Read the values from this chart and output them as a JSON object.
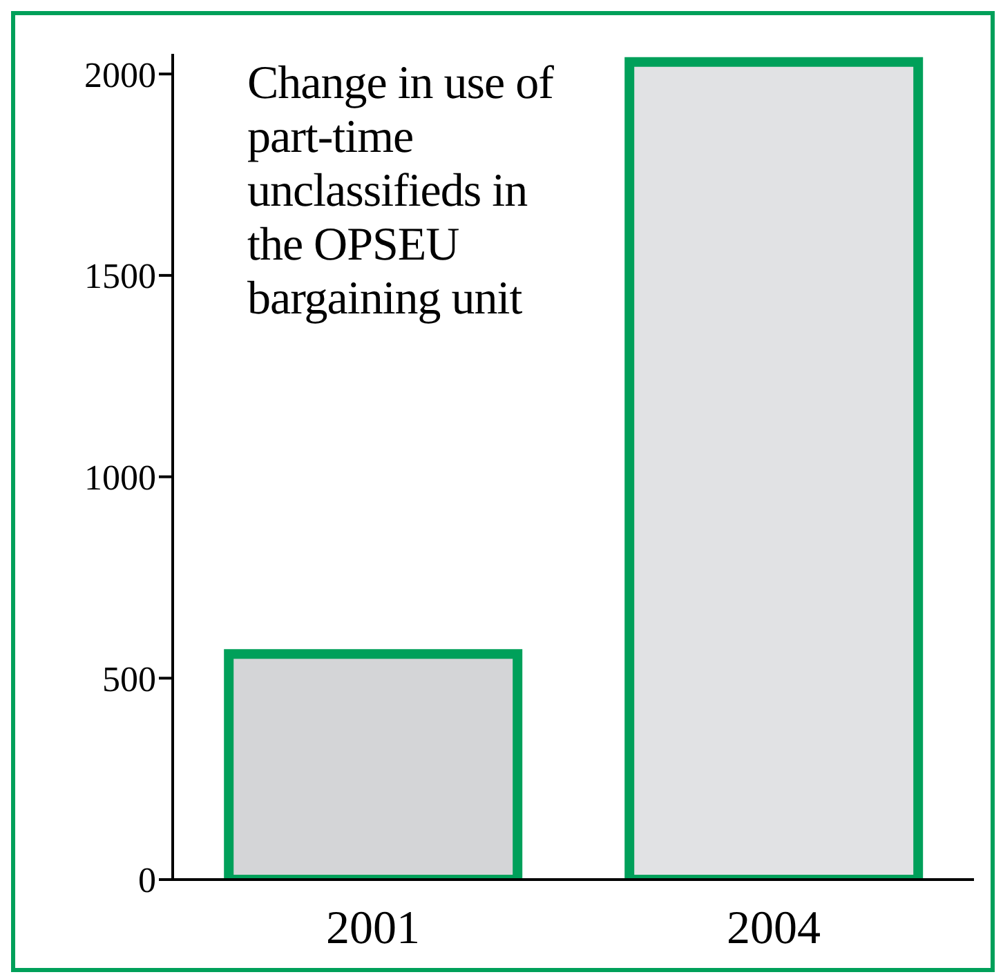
{
  "chart_data": {
    "type": "bar",
    "title": "Change in use of part-time unclassifieds in the OPSEU bargaining unit",
    "categories": [
      "2001",
      "2004"
    ],
    "values": [
      560,
      2030
    ],
    "colors": [
      "#d4d5d7",
      "#e1e2e4"
    ],
    "ylim": [
      0,
      2050
    ],
    "yticks": [
      0,
      500,
      1000,
      1500,
      2000
    ],
    "grid": false,
    "legend": false
  }
}
